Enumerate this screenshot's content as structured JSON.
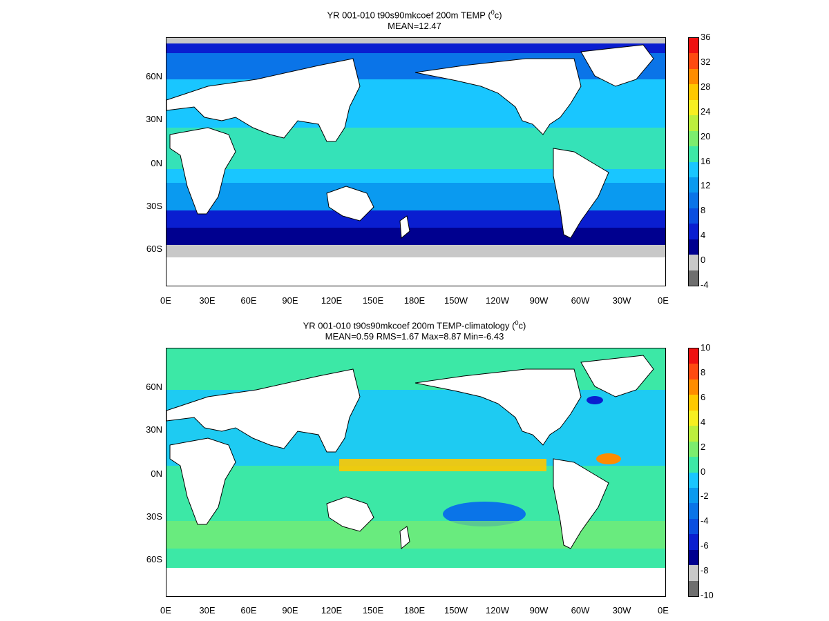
{
  "panel1": {
    "title": "YR 001-010 t90s90mkcoef 200m TEMP (",
    "title_sup": "0",
    "title_end": "c)",
    "subtitle": "MEAN=12.47",
    "colorbar": {
      "labels": [
        "36",
        "32",
        "28",
        "24",
        "20",
        "16",
        "12",
        "8",
        "4",
        "0",
        "-4"
      ],
      "colors": [
        "#f01010",
        "#ff4a10",
        "#ff8c00",
        "#ffc800",
        "#f7f020",
        "#bcf03c",
        "#7ced6e",
        "#3ce8a6",
        "#19c6ff",
        "#0a9af0",
        "#0a74e8",
        "#0a4ee0",
        "#0a1ed0",
        "#00008f",
        "#c8c8c8",
        "#6e6e6e"
      ]
    }
  },
  "panel2": {
    "title": "YR 001-010 t90s90mkcoef 200m TEMP-climatology (",
    "title_sup": "0",
    "title_end": "c)",
    "subtitle": "MEAN=0.59   RMS=1.67   Max=8.87   Min=-6.43",
    "colorbar": {
      "labels": [
        "10",
        "8",
        "6",
        "4",
        "2",
        "0",
        "-2",
        "-4",
        "-6",
        "-8",
        "-10"
      ],
      "colors": [
        "#f01010",
        "#ff4a10",
        "#ff8c00",
        "#ffc800",
        "#f7f020",
        "#bcf03c",
        "#7ced6e",
        "#3ce8a6",
        "#19c6ff",
        "#0a9af0",
        "#0a74e8",
        "#0a4ee0",
        "#0a1ed0",
        "#00008f",
        "#c8c8c8",
        "#6e6e6e"
      ]
    }
  },
  "lat_labels": [
    "60N",
    "30N",
    "0N",
    "30S",
    "60S"
  ],
  "lon_labels": [
    "0E",
    "30E",
    "60E",
    "90E",
    "120E",
    "150E",
    "180E",
    "150W",
    "120W",
    "90W",
    "60W",
    "30W",
    "0E"
  ]
}
